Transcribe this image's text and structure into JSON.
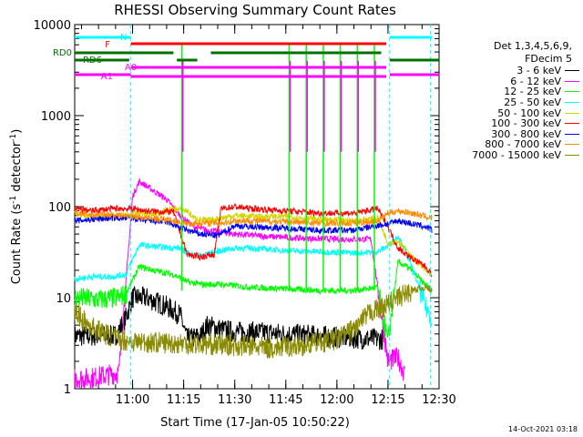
{
  "chart_data": {
    "type": "line",
    "title": "RHESSI Observing Summary Count Rates",
    "xlabel": "Start Time (17-Jan-05 10:50:22)",
    "ylabel_main": "Count Rate (s",
    "ylabel_sup1": "-1",
    "ylabel_mid": " detector",
    "ylabel_sup2": "-1",
    "ylabel_end": ")",
    "y_scale": "log",
    "ylim": [
      1,
      10000
    ],
    "xlim_minutes": [
      -7,
      100
    ],
    "x_ticks": [
      {
        "min": 10,
        "label": "11:00"
      },
      {
        "min": 25,
        "label": "11:15"
      },
      {
        "min": 40,
        "label": "11:30"
      },
      {
        "min": 55,
        "label": "11:45"
      },
      {
        "min": 70,
        "label": "12:00"
      },
      {
        "min": 85,
        "label": "12:15"
      },
      {
        "min": 100,
        "label": "12:30"
      }
    ],
    "y_ticks": [
      {
        "value": 1,
        "label": "1"
      },
      {
        "value": 10,
        "label": "10"
      },
      {
        "value": 100,
        "label": "100"
      },
      {
        "value": 1000,
        "label": "1000"
      },
      {
        "value": 10000,
        "label": "10000"
      }
    ],
    "legend_header": [
      "Det 1,3,4,5,6,9,",
      "FDecim 5"
    ],
    "series": [
      {
        "name": "3 - 6 keV",
        "color": "#000000",
        "points": [
          [
            -7,
            3.8
          ],
          [
            -2,
            3.8
          ],
          [
            5,
            3.8
          ],
          [
            8,
            6
          ],
          [
            10,
            10
          ],
          [
            14,
            10
          ],
          [
            20,
            8
          ],
          [
            24,
            6.5
          ],
          [
            26,
            3.5
          ],
          [
            30,
            3.8
          ],
          [
            32,
            5
          ],
          [
            36,
            4.5
          ],
          [
            40,
            4.2
          ],
          [
            45,
            4.2
          ],
          [
            55,
            4
          ],
          [
            65,
            3.8
          ],
          [
            75,
            3.6
          ],
          [
            82,
            3.5
          ],
          [
            84,
            3.5
          ]
        ]
      },
      {
        "name": "6 - 12 keV",
        "color": "#ff00ff",
        "points": [
          [
            -7,
            1.3
          ],
          [
            -3,
            1.3
          ],
          [
            2,
            1.4
          ],
          [
            6,
            1.5
          ],
          [
            10,
            130
          ],
          [
            12,
            190
          ],
          [
            15,
            160
          ],
          [
            20,
            120
          ],
          [
            24,
            80
          ],
          [
            28,
            60
          ],
          [
            32,
            55
          ],
          [
            40,
            50
          ],
          [
            50,
            47
          ],
          [
            60,
            45
          ],
          [
            70,
            44
          ],
          [
            80,
            44
          ],
          [
            85,
            2
          ],
          [
            88,
            2.2
          ],
          [
            90,
            1.4
          ]
        ]
      },
      {
        "name": "12 - 25 keV",
        "color": "#00ff00",
        "points": [
          [
            -7,
            10
          ],
          [
            0,
            9.5
          ],
          [
            6,
            10
          ],
          [
            8,
            11
          ],
          [
            12,
            22
          ],
          [
            16,
            20
          ],
          [
            22,
            18
          ],
          [
            26,
            15
          ],
          [
            30,
            14
          ],
          [
            36,
            14
          ],
          [
            45,
            13
          ],
          [
            55,
            12.5
          ],
          [
            65,
            12
          ],
          [
            75,
            12
          ],
          [
            82,
            13
          ],
          [
            85,
            3.2
          ],
          [
            88,
            25
          ],
          [
            92,
            20
          ],
          [
            95,
            15
          ],
          [
            98,
            12
          ]
        ]
      },
      {
        "name": "25 - 50 keV",
        "color": "#00ffff",
        "points": [
          [
            -7,
            16
          ],
          [
            -2,
            17
          ],
          [
            4,
            17
          ],
          [
            8,
            18
          ],
          [
            12,
            38
          ],
          [
            18,
            36
          ],
          [
            24,
            35
          ],
          [
            27,
            30
          ],
          [
            30,
            29
          ],
          [
            36,
            33
          ],
          [
            40,
            35
          ],
          [
            45,
            35
          ],
          [
            55,
            33
          ],
          [
            65,
            32
          ],
          [
            75,
            31
          ],
          [
            82,
            32
          ],
          [
            85,
            37
          ],
          [
            88,
            48
          ],
          [
            92,
            22
          ],
          [
            96,
            8
          ],
          [
            98,
            6
          ]
        ]
      },
      {
        "name": "50 - 100 keV",
        "color": "#d4d400",
        "points": [
          [
            -7,
            85
          ],
          [
            -2,
            75
          ],
          [
            4,
            78
          ],
          [
            8,
            80
          ],
          [
            12,
            85
          ],
          [
            16,
            82
          ],
          [
            22,
            95
          ],
          [
            26,
            90
          ],
          [
            28,
            75
          ],
          [
            32,
            70
          ],
          [
            36,
            75
          ],
          [
            40,
            80
          ],
          [
            45,
            78
          ],
          [
            55,
            78
          ],
          [
            65,
            72
          ],
          [
            75,
            70
          ],
          [
            82,
            75
          ],
          [
            85,
            40
          ],
          [
            88,
            42
          ],
          [
            92,
            28
          ],
          [
            96,
            20
          ],
          [
            98,
            18
          ]
        ]
      },
      {
        "name": "100 - 300 keV",
        "color": "#ff0000",
        "points": [
          [
            -7,
            95
          ],
          [
            -2,
            90
          ],
          [
            4,
            95
          ],
          [
            10,
            95
          ],
          [
            14,
            90
          ],
          [
            18,
            88
          ],
          [
            22,
            88
          ],
          [
            26,
            30
          ],
          [
            30,
            28
          ],
          [
            34,
            30
          ],
          [
            36,
            95
          ],
          [
            40,
            100
          ],
          [
            45,
            95
          ],
          [
            55,
            90
          ],
          [
            65,
            85
          ],
          [
            75,
            85
          ],
          [
            82,
            95
          ],
          [
            85,
            60
          ],
          [
            88,
            35
          ],
          [
            92,
            27
          ],
          [
            96,
            22
          ],
          [
            98,
            18
          ]
        ]
      },
      {
        "name": "300 - 800 keV",
        "color": "#0000ff",
        "points": [
          [
            -7,
            70
          ],
          [
            -2,
            72
          ],
          [
            4,
            75
          ],
          [
            10,
            75
          ],
          [
            14,
            70
          ],
          [
            20,
            68
          ],
          [
            26,
            55
          ],
          [
            30,
            50
          ],
          [
            35,
            48
          ],
          [
            40,
            62
          ],
          [
            45,
            60
          ],
          [
            55,
            58
          ],
          [
            65,
            55
          ],
          [
            75,
            55
          ],
          [
            82,
            62
          ],
          [
            85,
            65
          ],
          [
            88,
            70
          ],
          [
            92,
            65
          ],
          [
            96,
            60
          ],
          [
            98,
            55
          ]
        ]
      },
      {
        "name": "800 - 7000 keV",
        "color": "#ff8c00",
        "points": [
          [
            -7,
            85
          ],
          [
            -2,
            82
          ],
          [
            4,
            82
          ],
          [
            10,
            78
          ],
          [
            14,
            75
          ],
          [
            20,
            72
          ],
          [
            26,
            65
          ],
          [
            30,
            66
          ],
          [
            36,
            66
          ],
          [
            40,
            70
          ],
          [
            45,
            70
          ],
          [
            55,
            68
          ],
          [
            65,
            66
          ],
          [
            75,
            66
          ],
          [
            82,
            70
          ],
          [
            85,
            85
          ],
          [
            88,
            90
          ],
          [
            92,
            85
          ],
          [
            96,
            78
          ],
          [
            98,
            75
          ]
        ]
      },
      {
        "name": "7000 - 15000 keV",
        "color": "#8b8b00",
        "points": [
          [
            -7,
            7
          ],
          [
            -3,
            5
          ],
          [
            2,
            4
          ],
          [
            6,
            3.5
          ],
          [
            10,
            3.3
          ],
          [
            20,
            3.2
          ],
          [
            30,
            3.1
          ],
          [
            40,
            3
          ],
          [
            50,
            2.8
          ],
          [
            60,
            3
          ],
          [
            70,
            3.5
          ],
          [
            75,
            4.5
          ],
          [
            80,
            7
          ],
          [
            84,
            8
          ],
          [
            88,
            10
          ],
          [
            92,
            12
          ],
          [
            96,
            13
          ],
          [
            98,
            12
          ]
        ]
      }
    ],
    "flags": {
      "N": {
        "label": "N",
        "color": "#00ffff"
      },
      "F": {
        "label": "F",
        "color": "#ff0000"
      },
      "RD0": {
        "label": "RD0",
        "color": "#007000"
      },
      "RD6": {
        "label": "RD6",
        "color": "#007000"
      },
      "A0": {
        "label": "A0",
        "color": "#ff00ff"
      },
      "A1": {
        "label": "A1",
        "color": "#ff00ff"
      }
    },
    "attenuator_spikes_minutes": [
      24.5,
      56,
      61,
      66,
      71,
      76,
      81
    ],
    "dashed_verticals_minutes": [
      9.5,
      85.5,
      97.5
    ],
    "grid": true,
    "legend_placement": "right"
  },
  "timestamp": "14-Oct-2021 03:18"
}
